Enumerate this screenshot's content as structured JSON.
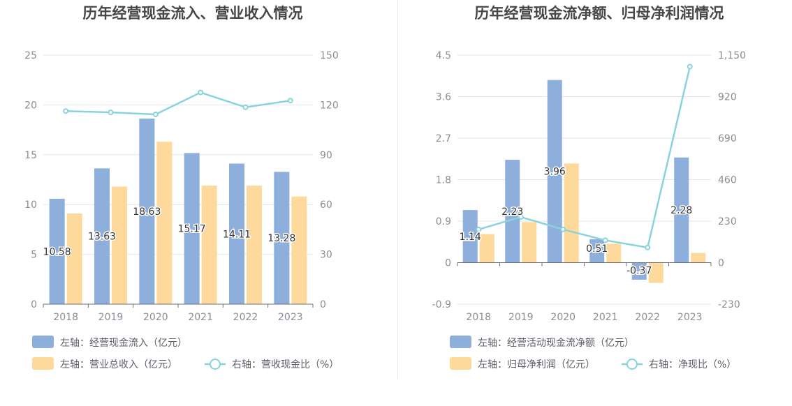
{
  "charts": [
    {
      "type": "bar+line",
      "title": "历年经营现金流入、营业收入情况",
      "categories": [
        "2018",
        "2019",
        "2020",
        "2021",
        "2022",
        "2023"
      ],
      "left_axis": {
        "min": 0,
        "max": 25,
        "ticks": [
          "0",
          "5",
          "10",
          "15",
          "20",
          "25"
        ]
      },
      "right_axis": {
        "min": 0,
        "max": 150,
        "ticks": [
          "0",
          "30",
          "60",
          "90",
          "120",
          "150"
        ]
      },
      "series": [
        {
          "name": "左轴：经营现金流入（亿元）",
          "kind": "bar",
          "axis": "left",
          "color": "#8eaedb",
          "values": [
            10.58,
            13.63,
            18.63,
            15.17,
            14.11,
            13.28
          ],
          "labels": [
            "10.58",
            "13.63",
            "18.63",
            "15.17",
            "14.11",
            "13.28"
          ]
        },
        {
          "name": "左轴：营业总收入（亿元）",
          "kind": "bar",
          "axis": "left",
          "color": "#fdd99b",
          "values": [
            9.1,
            11.8,
            16.3,
            11.9,
            11.9,
            10.8
          ]
        },
        {
          "name": "右轴：营收现金比（%）",
          "kind": "line",
          "axis": "right",
          "color": "#89d4dc",
          "values": [
            116.3,
            115.5,
            114.3,
            127.5,
            118.6,
            122.6
          ]
        }
      ]
    },
    {
      "type": "bar+line",
      "title": "历年经营现金流净额、归母净利润情况",
      "categories": [
        "2018",
        "2019",
        "2020",
        "2021",
        "2022",
        "2023"
      ],
      "left_axis": {
        "min": -0.9,
        "max": 4.5,
        "ticks": [
          "-0.9",
          "0",
          "0.9",
          "1.8",
          "2.7",
          "3.6",
          "4.5"
        ]
      },
      "right_axis": {
        "min": -230,
        "max": 1150,
        "ticks": [
          "-230",
          "0",
          "230",
          "460",
          "690",
          "920",
          "1,150"
        ]
      },
      "series": [
        {
          "name": "左轴：经营活动现金流净额（亿元）",
          "kind": "bar",
          "axis": "left",
          "color": "#8eaedb",
          "values": [
            1.14,
            2.23,
            3.96,
            0.51,
            -0.37,
            2.28
          ],
          "labels": [
            "1.14",
            "2.23",
            "3.96",
            "0.51",
            "-0.37",
            "2.28"
          ]
        },
        {
          "name": "左轴：归母净利润（亿元）",
          "kind": "bar",
          "axis": "left",
          "color": "#fdd99b",
          "values": [
            0.62,
            0.88,
            2.15,
            0.41,
            -0.44,
            0.21
          ]
        },
        {
          "name": "右轴：净现比（%）",
          "kind": "line",
          "axis": "right",
          "color": "#89d4dc",
          "values": [
            184,
            253,
            184,
            124,
            84,
            1086
          ]
        }
      ]
    }
  ]
}
